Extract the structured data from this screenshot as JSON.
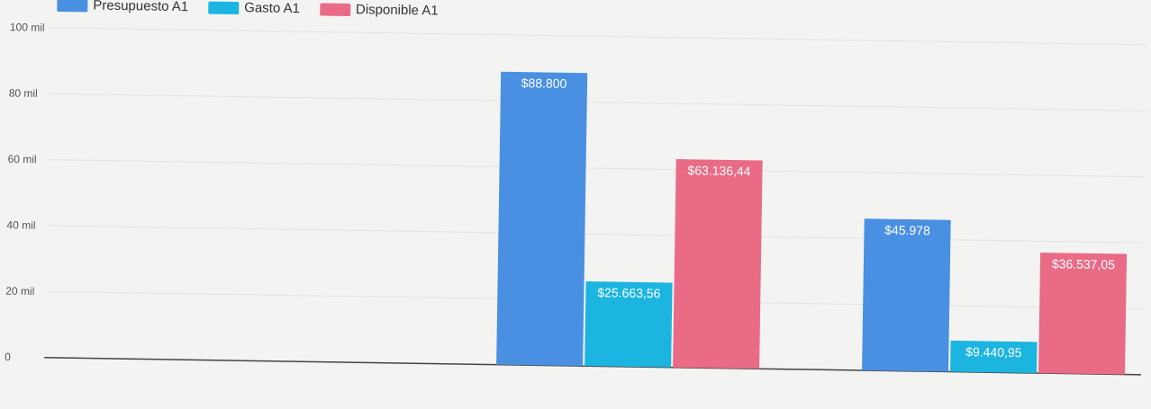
{
  "chart_data": {
    "type": "bar",
    "categories": [
      "",
      "",
      ""
    ],
    "series": [
      {
        "name": "Presupuesto A1",
        "color": "#4a90e2",
        "values": [
          0,
          88800,
          45978
        ],
        "labels": [
          "",
          "$88.800",
          "$45.978"
        ]
      },
      {
        "name": "Gasto A1",
        "color": "#1cb5e0",
        "values": [
          0,
          25663.56,
          9440.95
        ],
        "labels": [
          "",
          "$25.663,56",
          "$9.440,95"
        ]
      },
      {
        "name": "Disponible A1",
        "color": "#e96b86",
        "values": [
          0,
          63136.44,
          36537.05
        ],
        "labels": [
          "",
          "$63.136,44",
          "$36.537,05"
        ]
      }
    ],
    "yticks": [
      {
        "value": 0,
        "label": "0"
      },
      {
        "value": 20000,
        "label": "20 mil"
      },
      {
        "value": 40000,
        "label": "40 mil"
      },
      {
        "value": 60000,
        "label": "60 mil"
      },
      {
        "value": 80000,
        "label": "80 mil"
      },
      {
        "value": 100000,
        "label": "100 mil"
      }
    ],
    "ylim": [
      0,
      100000
    ],
    "grid": true,
    "legend": "top-left"
  }
}
